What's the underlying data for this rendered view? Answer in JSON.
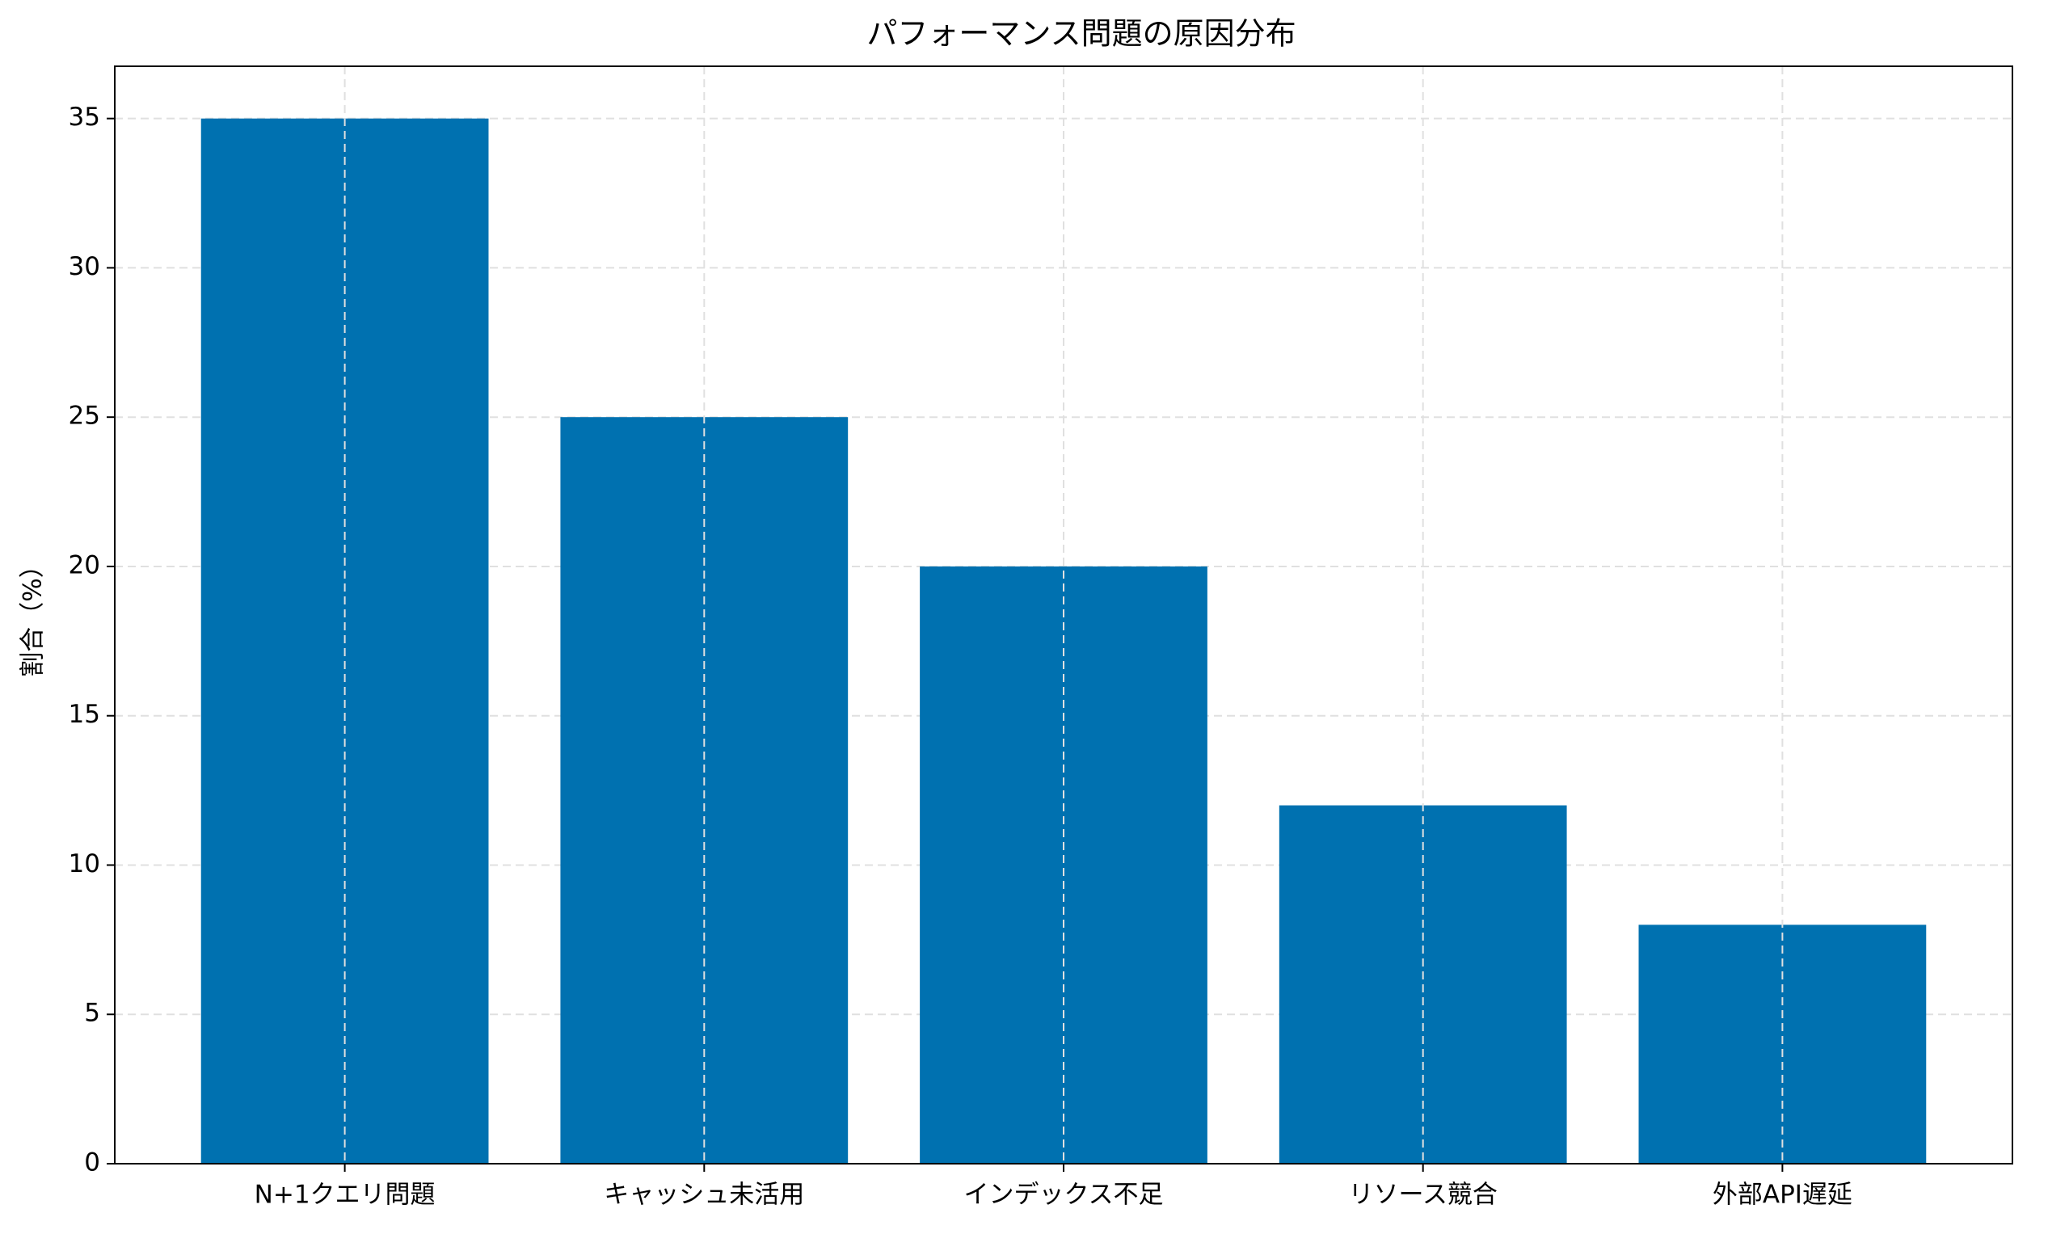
{
  "chart_data": {
    "type": "bar",
    "title": "パフォーマンス問題の原因分布",
    "y_label": "割合（%）",
    "categories": [
      "N+1クエリ問題",
      "キャッシュ未活用",
      "インデックス不足",
      "リソース競合",
      "外部API遅延"
    ],
    "values": [
      35,
      25,
      20,
      12,
      8
    ],
    "color": "#0071b0",
    "ylim": [
      0,
      36.75
    ],
    "yticks": [
      0,
      5,
      10,
      15,
      20,
      25,
      30,
      35
    ],
    "grid": true
  }
}
